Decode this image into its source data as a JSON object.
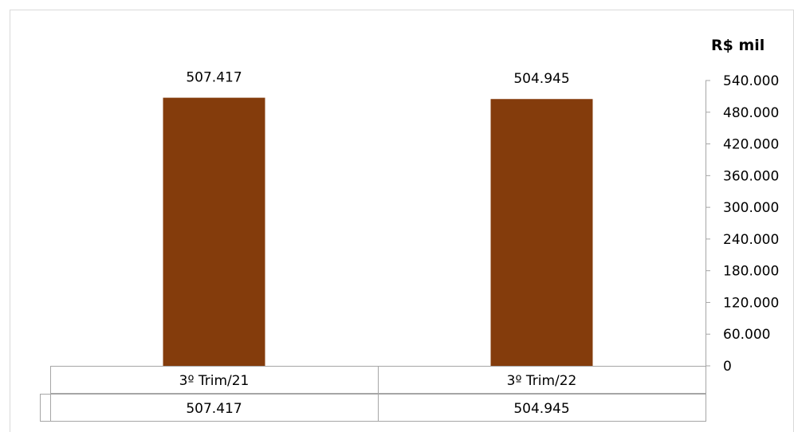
{
  "chart_data": {
    "type": "bar",
    "unit_label": "R$ mil",
    "categories": [
      "3º Trim/21",
      "3º Trim/22"
    ],
    "values": [
      507417,
      504945
    ],
    "value_labels": [
      "507.417",
      "504.945"
    ],
    "series": [
      {
        "values": [
          507417,
          504945
        ]
      }
    ],
    "ylim": [
      0,
      540000
    ],
    "y_ticks": [
      0,
      60000,
      120000,
      180000,
      240000,
      300000,
      360000,
      420000,
      480000,
      540000
    ],
    "y_tick_labels": [
      "0",
      "60.000",
      "120.000",
      "180.000",
      "240.000",
      "300.000",
      "360.000",
      "420.000",
      "480.000",
      "540.000"
    ],
    "y_axis_side": "right",
    "grid": false,
    "data_table": {
      "header": [
        "3º Trim/21",
        "3º Trim/22"
      ],
      "row": [
        "507.417",
        "504.945"
      ]
    },
    "colors": {
      "bar": "#843C0C",
      "axis": "#A6A6A6",
      "frame": "#D9D9D9"
    }
  }
}
